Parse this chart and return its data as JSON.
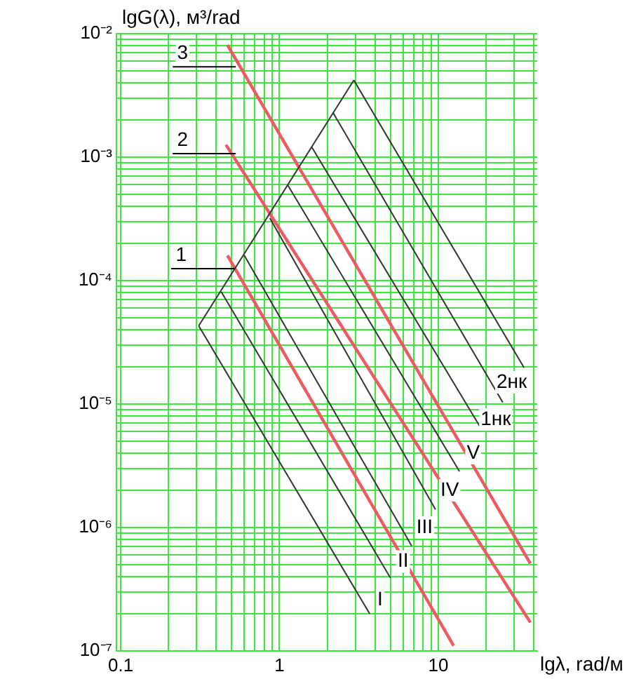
{
  "chart_data": {
    "type": "line",
    "xlabel": "lgλ, rad/м",
    "ylabel": "lgG(λ), м³/rad",
    "log": "xy",
    "grid": true,
    "legend": false,
    "marker": "none",
    "line_style": "solid",
    "xlim": [
      0.094,
      42
    ],
    "ylim": [
      1e-07,
      0.01
    ],
    "xticks": [
      {
        "value": 0.1,
        "label": "0.1"
      },
      {
        "value": 0.2,
        "label": null
      },
      {
        "value": 0.3,
        "label": null
      },
      {
        "value": 0.4,
        "label": null
      },
      {
        "value": 0.5,
        "label": null
      },
      {
        "value": 0.6,
        "label": null
      },
      {
        "value": 0.7,
        "label": null
      },
      {
        "value": 0.8,
        "label": null
      },
      {
        "value": 0.9,
        "label": null
      },
      1,
      {
        "value": 2,
        "label": null
      },
      {
        "value": 3,
        "label": null
      },
      {
        "value": 4,
        "label": null
      },
      {
        "value": 5,
        "label": null
      },
      {
        "value": 6,
        "label": null
      },
      {
        "value": 7,
        "label": null
      },
      {
        "value": 8,
        "label": null
      },
      {
        "value": 9,
        "label": null
      },
      10,
      {
        "value": 20,
        "label": null
      },
      {
        "value": 30,
        "label": null
      },
      {
        "value": 40,
        "label": null
      }
    ],
    "yticks": [
      {
        "value": 1e-07,
        "label": "10⁻⁷"
      },
      {
        "value": 2e-07,
        "label": null
      },
      {
        "value": 3e-07,
        "label": null
      },
      {
        "value": 4e-07,
        "label": null
      },
      {
        "value": 5e-07,
        "label": null
      },
      {
        "value": 6e-07,
        "label": null
      },
      {
        "value": 7e-07,
        "label": null
      },
      {
        "value": 8e-07,
        "label": null
      },
      {
        "value": 9e-07,
        "label": null
      },
      {
        "value": 1e-06,
        "label": "10⁻⁶"
      },
      {
        "value": 2e-06,
        "label": null
      },
      {
        "value": 3e-06,
        "label": null
      },
      {
        "value": 4e-06,
        "label": null
      },
      {
        "value": 5e-06,
        "label": null
      },
      {
        "value": 6e-06,
        "label": null
      },
      {
        "value": 7e-06,
        "label": null
      },
      {
        "value": 8e-06,
        "label": null
      },
      {
        "value": 9e-06,
        "label": null
      },
      {
        "value": 1e-05,
        "label": "10⁻⁵"
      },
      {
        "value": 2e-05,
        "label": null
      },
      {
        "value": 3e-05,
        "label": null
      },
      {
        "value": 4e-05,
        "label": null
      },
      {
        "value": 5e-05,
        "label": null
      },
      {
        "value": 6e-05,
        "label": null
      },
      {
        "value": 7e-05,
        "label": null
      },
      {
        "value": 8e-05,
        "label": null
      },
      {
        "value": 9e-05,
        "label": null
      },
      {
        "value": 0.0001,
        "label": "10⁻⁴"
      },
      {
        "value": 0.0002,
        "label": null
      },
      {
        "value": 0.0003,
        "label": null
      },
      {
        "value": 0.0004,
        "label": null
      },
      {
        "value": 0.0005,
        "label": null
      },
      {
        "value": 0.0006,
        "label": null
      },
      {
        "value": 0.0007,
        "label": null
      },
      {
        "value": 0.0008,
        "label": null
      },
      {
        "value": 0.0009,
        "label": null
      },
      {
        "value": 0.001,
        "label": "10⁻³"
      },
      {
        "value": 0.002,
        "label": null
      },
      {
        "value": 0.003,
        "label": null
      },
      {
        "value": 0.004,
        "label": null
      },
      {
        "value": 0.005,
        "label": null
      },
      {
        "value": 0.006,
        "label": null
      },
      {
        "value": 0.007,
        "label": null
      },
      {
        "value": 0.008,
        "label": null
      },
      {
        "value": 0.009,
        "label": null
      },
      {
        "value": 0.01,
        "label": "10⁻²"
      }
    ],
    "series": [
      {
        "color": "#333333",
        "x": [
          0.31,
          2.94
        ],
        "values": [
          4.3e-05,
          0.0042
        ]
      },
      {
        "color": "#333333",
        "x": [
          0.31,
          3.7
        ],
        "values": [
          4.3e-05,
          2e-07
        ]
      },
      {
        "color": "#333333",
        "x": [
          0.43,
          5.0
        ],
        "values": [
          8.1e-05,
          3.9e-07
        ]
      },
      {
        "color": "#333333",
        "x": [
          0.6,
          6.8
        ],
        "values": [
          0.00016,
          7.1e-07
        ]
      },
      {
        "color": "#333333",
        "x": [
          0.87,
          9.6
        ],
        "values": [
          0.00032,
          1.4e-06
        ]
      },
      {
        "color": "#333333",
        "x": [
          1.13,
          13.6
        ],
        "values": [
          0.00059,
          2.85e-06
        ]
      },
      {
        "color": "#333333",
        "x": [
          1.6,
          18.8
        ],
        "values": [
          0.0012,
          6.2e-06
        ]
      },
      {
        "color": "#333333",
        "x": [
          2.17,
          25.5
        ],
        "values": [
          0.0023,
          1.03e-05
        ]
      },
      {
        "color": "#333333",
        "x": [
          2.94,
          34.7
        ],
        "values": [
          0.0042,
          1.97e-05
        ]
      },
      {
        "color": "#ee5a64",
        "x": [
          0.47,
          38
        ],
        "values": [
          0.0081,
          5.1e-07
        ]
      },
      {
        "color": "#ee5a64",
        "x": [
          0.46,
          38
        ],
        "values": [
          0.00126,
          1.7e-07
        ]
      },
      {
        "color": "#ee5a64",
        "x": [
          0.47,
          12.5
        ],
        "values": [
          0.00016,
          1.1e-07
        ]
      }
    ],
    "annotations": [
      {
        "text": "3",
        "x": 0.245,
        "y": 0.0069
      },
      {
        "text": "2",
        "x": 0.245,
        "y": 0.00137
      },
      {
        "text": "1",
        "x": 0.24,
        "y": 0.00016
      },
      {
        "text": "I",
        "x": 4.3,
        "y": 2.6e-07
      },
      {
        "text": "II",
        "x": 6.0,
        "y": 5.3e-07
      },
      {
        "text": "III",
        "x": 8.2,
        "y": 1e-06
      },
      {
        "text": "IV",
        "x": 11.8,
        "y": 2e-06
      },
      {
        "text": "V",
        "x": 16.6,
        "y": 4e-06
      },
      {
        "text": "1нк",
        "x": 23,
        "y": 7.5e-06
      },
      {
        "text": "2нк",
        "x": 29,
        "y": 1.5e-05
      }
    ]
  }
}
